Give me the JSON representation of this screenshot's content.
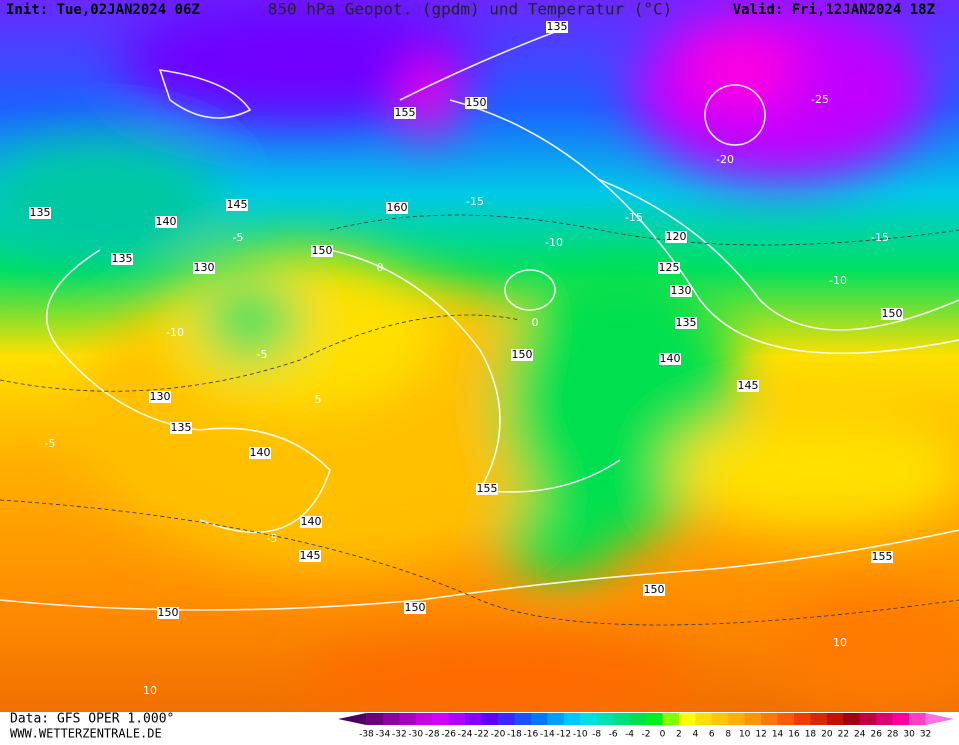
{
  "header": {
    "init": "Init: Tue,02JAN2024 06Z",
    "title": "850 hPa Geopot. (gpdm) und Temperatur (°C)",
    "valid": "Valid: Fri,12JAN2024 18Z"
  },
  "footer": {
    "source": "Data: GFS OPER 1.000°",
    "website": "WWW.WETTERZENTRALE.DE"
  },
  "geopotential_labels": [
    135,
    155,
    150,
    135,
    140,
    145,
    160,
    150,
    135,
    130,
    120,
    125,
    130,
    135,
    150,
    140,
    145,
    150,
    130,
    135,
    140,
    155,
    140,
    145,
    150,
    150,
    150,
    155
  ],
  "temperature_labels": [
    -10,
    -5,
    -5,
    0,
    0,
    -10,
    -15,
    -15,
    -20,
    -25,
    -10,
    -15,
    5,
    -5,
    -5,
    10,
    10
  ],
  "colorbar": {
    "values": [
      -38,
      -34,
      -32,
      -30,
      -28,
      -26,
      -24,
      -22,
      -20,
      -18,
      -16,
      -14,
      -12,
      -10,
      -8,
      -6,
      -4,
      -2,
      0,
      2,
      4,
      6,
      8,
      10,
      12,
      14,
      16,
      18,
      20,
      22,
      24,
      26,
      28,
      30,
      32
    ],
    "colors": [
      "#4b0060",
      "#6a0080",
      "#8a00a0",
      "#a800c0",
      "#c800e0",
      "#d000ff",
      "#b000ff",
      "#8800ff",
      "#6000ff",
      "#3c28ff",
      "#1e50ff",
      "#0078ff",
      "#00a0ff",
      "#00c8ff",
      "#00e0e0",
      "#00e0b0",
      "#00e080",
      "#00e050",
      "#00f020",
      "#80ff00",
      "#ffff00",
      "#ffe000",
      "#ffc800",
      "#ffb000",
      "#ff9600",
      "#ff7800",
      "#ff5a00",
      "#f03c00",
      "#d82800",
      "#c01400",
      "#a00010",
      "#c00040",
      "#e00070",
      "#ff00a0",
      "#ff40c0",
      "#ff70e0"
    ]
  }
}
